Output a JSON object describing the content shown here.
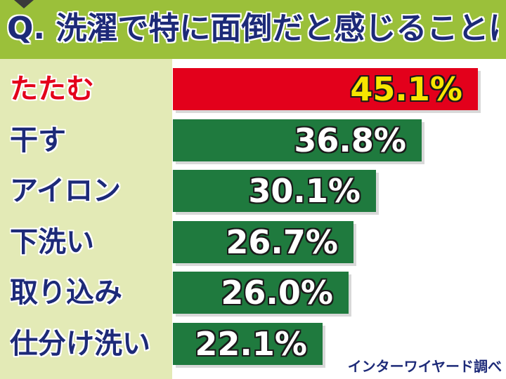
{
  "header": {
    "question": "Q. 洗濯で特に面倒だと感じることは?"
  },
  "source": "インターワイヤード調べ",
  "colors": {
    "header_bg": "#9bc03a",
    "label_panel_bg": "#e3eab6",
    "bar_default": "#1f7a3e",
    "bar_highlight": "#e3001b",
    "label_default": "#1d2a78",
    "label_highlight": "#e3001b",
    "value_default": "#ffffff",
    "value_highlight": "#f7e600"
  },
  "chart_data": {
    "type": "bar",
    "orientation": "horizontal",
    "title": "Q. 洗濯で特に面倒だと感じることは?",
    "categories": [
      "たたむ",
      "干す",
      "アイロン",
      "下洗い",
      "取り込み",
      "仕分け洗い"
    ],
    "values": [
      45.1,
      36.8,
      30.1,
      26.7,
      26.0,
      22.1
    ],
    "value_labels": [
      "45.1%",
      "36.8%",
      "30.1%",
      "26.7%",
      "26.0%",
      "22.1%"
    ],
    "highlight_index": 0,
    "unit": "%",
    "xlim": [
      0,
      46.8
    ],
    "grid": false,
    "legend": "none"
  }
}
